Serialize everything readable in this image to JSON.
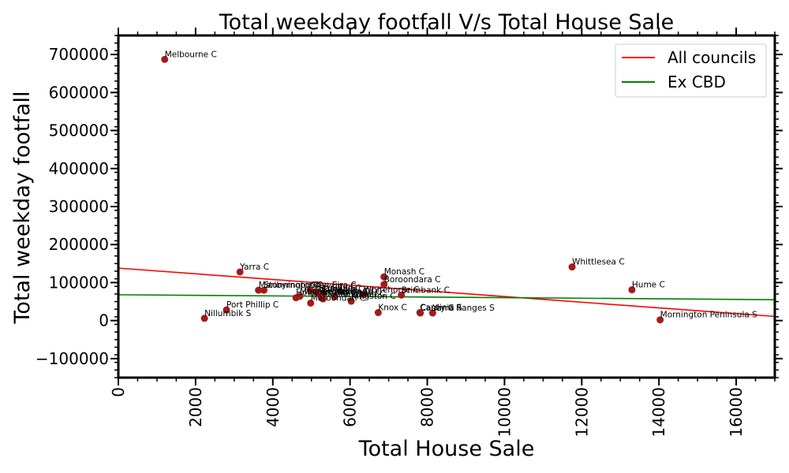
{
  "chart_data": {
    "type": "scatter",
    "title": "Total weekday footfall V/s Total House Sale",
    "xlabel": "Total House Sale",
    "ylabel": "Total weekday footfall",
    "xlim": [
      0,
      17000
    ],
    "ylim": [
      -150000,
      750000
    ],
    "x_ticks": [
      0,
      2000,
      4000,
      6000,
      8000,
      10000,
      12000,
      14000,
      16000
    ],
    "x_tick_labels": [
      "0",
      "2000",
      "4000",
      "6000",
      "8000",
      "10000",
      "12000",
      "14000",
      "16000"
    ],
    "y_ticks": [
      -100000,
      0,
      100000,
      200000,
      300000,
      400000,
      500000,
      600000,
      700000
    ],
    "y_tick_labels": [
      "−100000",
      "0",
      "100000",
      "200000",
      "300000",
      "400000",
      "500000",
      "600000",
      "700000"
    ],
    "grid": false,
    "legend_position": "top-right",
    "point_color": "#a31b1b",
    "points": [
      {
        "label": "Melbourne C",
        "x": 1200,
        "y": 687000
      },
      {
        "label": "Yarra C",
        "x": 3150,
        "y": 128000
      },
      {
        "label": "Port Phillip C",
        "x": 2800,
        "y": 28000
      },
      {
        "label": "Nillumbik S",
        "x": 2230,
        "y": 6000
      },
      {
        "label": "Maribyrnong C",
        "x": 3630,
        "y": 80000
      },
      {
        "label": "Stonnington C",
        "x": 3770,
        "y": 80000
      },
      {
        "label": "Glen Eira C",
        "x": 4970,
        "y": 80000
      },
      {
        "label": "Bayside C",
        "x": 5100,
        "y": 76000
      },
      {
        "label": "Banyule C",
        "x": 5200,
        "y": 72000
      },
      {
        "label": "Darebin C",
        "x": 5300,
        "y": 69000
      },
      {
        "label": "Moonee Valley C",
        "x": 4700,
        "y": 64000
      },
      {
        "label": "Hobsons Bay C",
        "x": 4600,
        "y": 60000
      },
      {
        "label": "Frankston C",
        "x": 5250,
        "y": 63000
      },
      {
        "label": "Manningham C",
        "x": 5300,
        "y": 57000
      },
      {
        "label": "Moreland C",
        "x": 5600,
        "y": 63000
      },
      {
        "label": "Maroondah C",
        "x": 4980,
        "y": 46000
      },
      {
        "label": "Kingston C",
        "x": 6030,
        "y": 51000
      },
      {
        "label": "Whitehorse C",
        "x": 6350,
        "y": 68000
      },
      {
        "label": "Brimbank C",
        "x": 7330,
        "y": 67000
      },
      {
        "label": "Monash C",
        "x": 6880,
        "y": 115000
      },
      {
        "label": "Boroondara C",
        "x": 6880,
        "y": 95000
      },
      {
        "label": "Knox C",
        "x": 6730,
        "y": 21000
      },
      {
        "label": "Casey C",
        "x": 7820,
        "y": 20000
      },
      {
        "label": "Cardinia S",
        "x": 7810,
        "y": 21000
      },
      {
        "label": "Yarra Ranges S",
        "x": 8140,
        "y": 20000
      },
      {
        "label": "Whittlesea C",
        "x": 11750,
        "y": 141000
      },
      {
        "label": "Hume C",
        "x": 13300,
        "y": 81000
      },
      {
        "label": "Mornington Peninsula S",
        "x": 14030,
        "y": 2000
      }
    ],
    "series": [
      {
        "name": "All councils",
        "color": "#ff0000",
        "x": [
          0,
          17000
        ],
        "y": [
          138000,
          11000
        ]
      },
      {
        "name": "Ex CBD",
        "color": "#008000",
        "x": [
          0,
          17000
        ],
        "y": [
          68000,
          55000
        ]
      }
    ]
  }
}
